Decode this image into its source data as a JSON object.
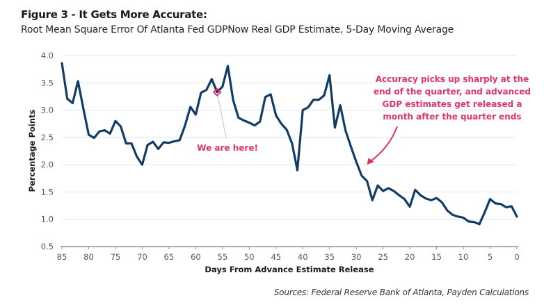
{
  "header": {
    "title": "Figure 3 - It Gets More Accurate:",
    "subtitle": "Root Mean Square Error Of Atlanta Fed GDPNow Real GDP Estimate, 5-Day Moving Average"
  },
  "footer": {
    "source": "Sources: Federal Reserve Bank of Atlanta, Payden Calculations"
  },
  "colors": {
    "line": "#123c66",
    "accent": "#e0336f",
    "grid": "#e4ecf2",
    "axis": "#7f95a8"
  },
  "chart_data": {
    "type": "line",
    "title": "Figure 3 - It Gets More Accurate:",
    "subtitle": "Root Mean Square Error Of Atlanta Fed GDPNow Real GDP Estimate, 5-Day Moving Average",
    "xlabel": "Days From Advance Estimate Release",
    "ylabel": "Percentage Points",
    "xlim": [
      85,
      0
    ],
    "ylim": [
      0.5,
      4.0
    ],
    "x_reversed": true,
    "grid": true,
    "x_ticks": [
      85,
      80,
      75,
      70,
      65,
      60,
      55,
      50,
      45,
      40,
      35,
      30,
      25,
      20,
      15,
      10,
      5,
      0
    ],
    "y_ticks": [
      "0.5",
      "1.0",
      "1.5",
      "2.0",
      "2.5",
      "3.0",
      "3.5",
      "4.0"
    ],
    "series": [
      {
        "name": "RMSE (5-day moving average)",
        "x": [
          85,
          84,
          83,
          82,
          81,
          80,
          79,
          78,
          77,
          76,
          75,
          74,
          73,
          72,
          71,
          70,
          69,
          68,
          67,
          66,
          65,
          64,
          63,
          62,
          61,
          60,
          59,
          58,
          57,
          56,
          55,
          54,
          53,
          52,
          51,
          50,
          49,
          48,
          47,
          46,
          45,
          44,
          43,
          42,
          41,
          40,
          39,
          38,
          37,
          36,
          35,
          34,
          33,
          32,
          31,
          30,
          29,
          28,
          27,
          26,
          25,
          24,
          23,
          22,
          21,
          20,
          19,
          18,
          17,
          16,
          15,
          14,
          13,
          12,
          11,
          10,
          9,
          8,
          7,
          6,
          5,
          4,
          3,
          2,
          1,
          0
        ],
        "values": [
          3.86,
          3.21,
          3.13,
          3.53,
          3.03,
          2.55,
          2.49,
          2.61,
          2.63,
          2.57,
          2.8,
          2.7,
          2.39,
          2.39,
          2.15,
          2.0,
          2.36,
          2.42,
          2.29,
          2.41,
          2.4,
          2.43,
          2.45,
          2.72,
          3.06,
          2.92,
          3.32,
          3.37,
          3.57,
          3.33,
          3.43,
          3.81,
          3.18,
          2.86,
          2.81,
          2.77,
          2.72,
          2.79,
          3.24,
          3.29,
          2.9,
          2.75,
          2.64,
          2.39,
          1.9,
          3.0,
          3.05,
          3.19,
          3.19,
          3.27,
          3.64,
          2.68,
          3.09,
          2.62,
          2.33,
          2.05,
          1.8,
          1.7,
          1.35,
          1.62,
          1.52,
          1.57,
          1.52,
          1.44,
          1.37,
          1.23,
          1.54,
          1.44,
          1.38,
          1.35,
          1.39,
          1.31,
          1.16,
          1.08,
          1.05,
          1.03,
          0.96,
          0.95,
          0.91,
          1.13,
          1.37,
          1.29,
          1.28,
          1.22,
          1.24,
          1.05
        ]
      }
    ],
    "annotations": [
      {
        "text": "We are here!",
        "x": 56,
        "y": 3.33,
        "type": "marker-with-leader"
      },
      {
        "lines": [
          "Accuracy picks up sharply at the",
          "end of the quarter, and advanced",
          "GDP estimates get released a",
          "month after the quarter ends"
        ],
        "arrow_to_x": 28,
        "arrow_to_y": 2.0,
        "type": "text-with-arrow"
      }
    ]
  }
}
